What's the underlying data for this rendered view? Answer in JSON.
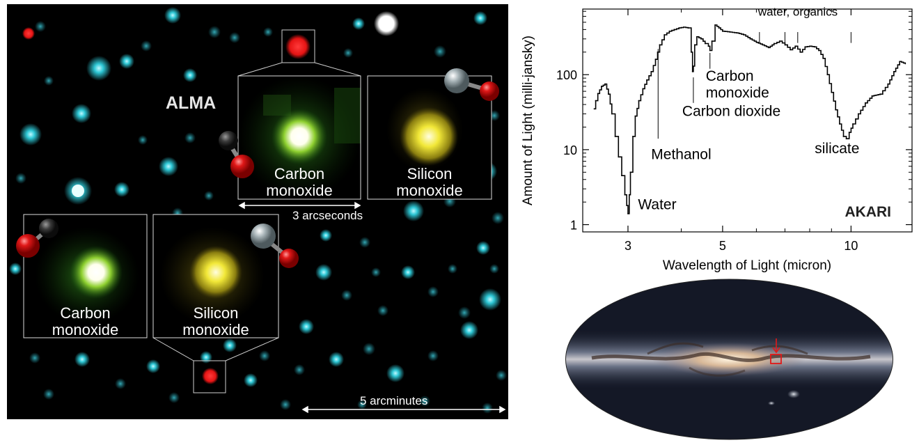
{
  "alma_panel": {
    "label": "ALMA",
    "insets": [
      {
        "label": "Carbon\nmonoxide"
      },
      {
        "label": "Silicon\nmonoxide"
      },
      {
        "label": "Carbon\nmonoxide"
      },
      {
        "label": "Silicon\nmonoxide"
      }
    ],
    "scale_inset": "3 arcseconds",
    "scale_field": "5 arcminutes"
  },
  "chart_data": {
    "type": "line",
    "title": "",
    "xlabel": "Wavelength of Light (micron)",
    "ylabel": "Amount of Light (milli-jansky)",
    "x_scale": "log",
    "y_scale": "log",
    "xlim": [
      2.35,
      13.9
    ],
    "ylim": [
      0.8,
      750
    ],
    "x_ticks": [
      {
        "v": 3,
        "label": "3"
      },
      {
        "v": 5,
        "label": "5"
      },
      {
        "v": 10,
        "label": "10"
      }
    ],
    "x_minor_ticks": [
      4,
      6,
      7,
      8,
      9
    ],
    "y_ticks": [
      {
        "v": 1,
        "label": "1"
      },
      {
        "v": 10,
        "label": "10"
      },
      {
        "v": 100,
        "label": "100"
      }
    ],
    "source_label": "AKARI",
    "series": [
      {
        "x": [
          2.5,
          2.52,
          2.55,
          2.6,
          2.65,
          2.7,
          2.75,
          2.8,
          2.85,
          2.9,
          2.95,
          2.98,
          3.0,
          3.02,
          3.04,
          3.08,
          3.12,
          3.18,
          3.25,
          3.32,
          3.4,
          3.48,
          3.56,
          3.65,
          3.75,
          3.85,
          3.95,
          4.05,
          4.15,
          4.22,
          4.25,
          4.27,
          4.3,
          4.35,
          4.45,
          4.55,
          4.63,
          4.67,
          4.72,
          4.8,
          4.9,
          5.0,
          5.2,
          5.4,
          5.6,
          5.8,
          6.0,
          6.2,
          6.4,
          6.6,
          6.8,
          7.0,
          7.2,
          7.4,
          7.6,
          7.8,
          8.0,
          8.2,
          8.4,
          8.6,
          8.8,
          9.0,
          9.2,
          9.4,
          9.6,
          9.75,
          9.9,
          10.1,
          10.4,
          10.8,
          11.2,
          11.7,
          12.2,
          12.6,
          13.0,
          13.4
        ],
        "y": [
          35,
          45,
          56,
          70,
          75,
          55,
          30,
          15,
          8,
          4.5,
          2.5,
          1.8,
          1.4,
          2.5,
          5,
          15,
          28,
          45,
          65,
          85,
          110,
          160,
          250,
          340,
          380,
          400,
          420,
          430,
          420,
          200,
          110,
          130,
          250,
          320,
          300,
          260,
          240,
          210,
          280,
          460,
          420,
          380,
          370,
          360,
          340,
          300,
          270,
          250,
          230,
          260,
          280,
          250,
          215,
          240,
          200,
          235,
          240,
          235,
          210,
          165,
          100,
          58,
          34,
          22,
          15,
          14,
          17,
          22,
          30,
          42,
          52,
          55,
          75,
          110,
          150,
          140
        ]
      }
    ],
    "annotations": [
      {
        "text": "Water",
        "x": 3.05
      },
      {
        "text": "Methanol",
        "x": 3.53
      },
      {
        "text": "Carbon dioxide",
        "x": 4.27
      },
      {
        "text": "Carbon\nmonoxide",
        "x": 4.67
      },
      {
        "text": "silicate",
        "x": 9.7
      },
      {
        "text": "water, organics"
      }
    ]
  },
  "sky_map": {
    "marker_color": "#e21818"
  },
  "colors": {
    "cyan": "#2ec4d4",
    "co": "#7ccf3a",
    "sio": "#e8e02a",
    "red": "#e52020"
  }
}
